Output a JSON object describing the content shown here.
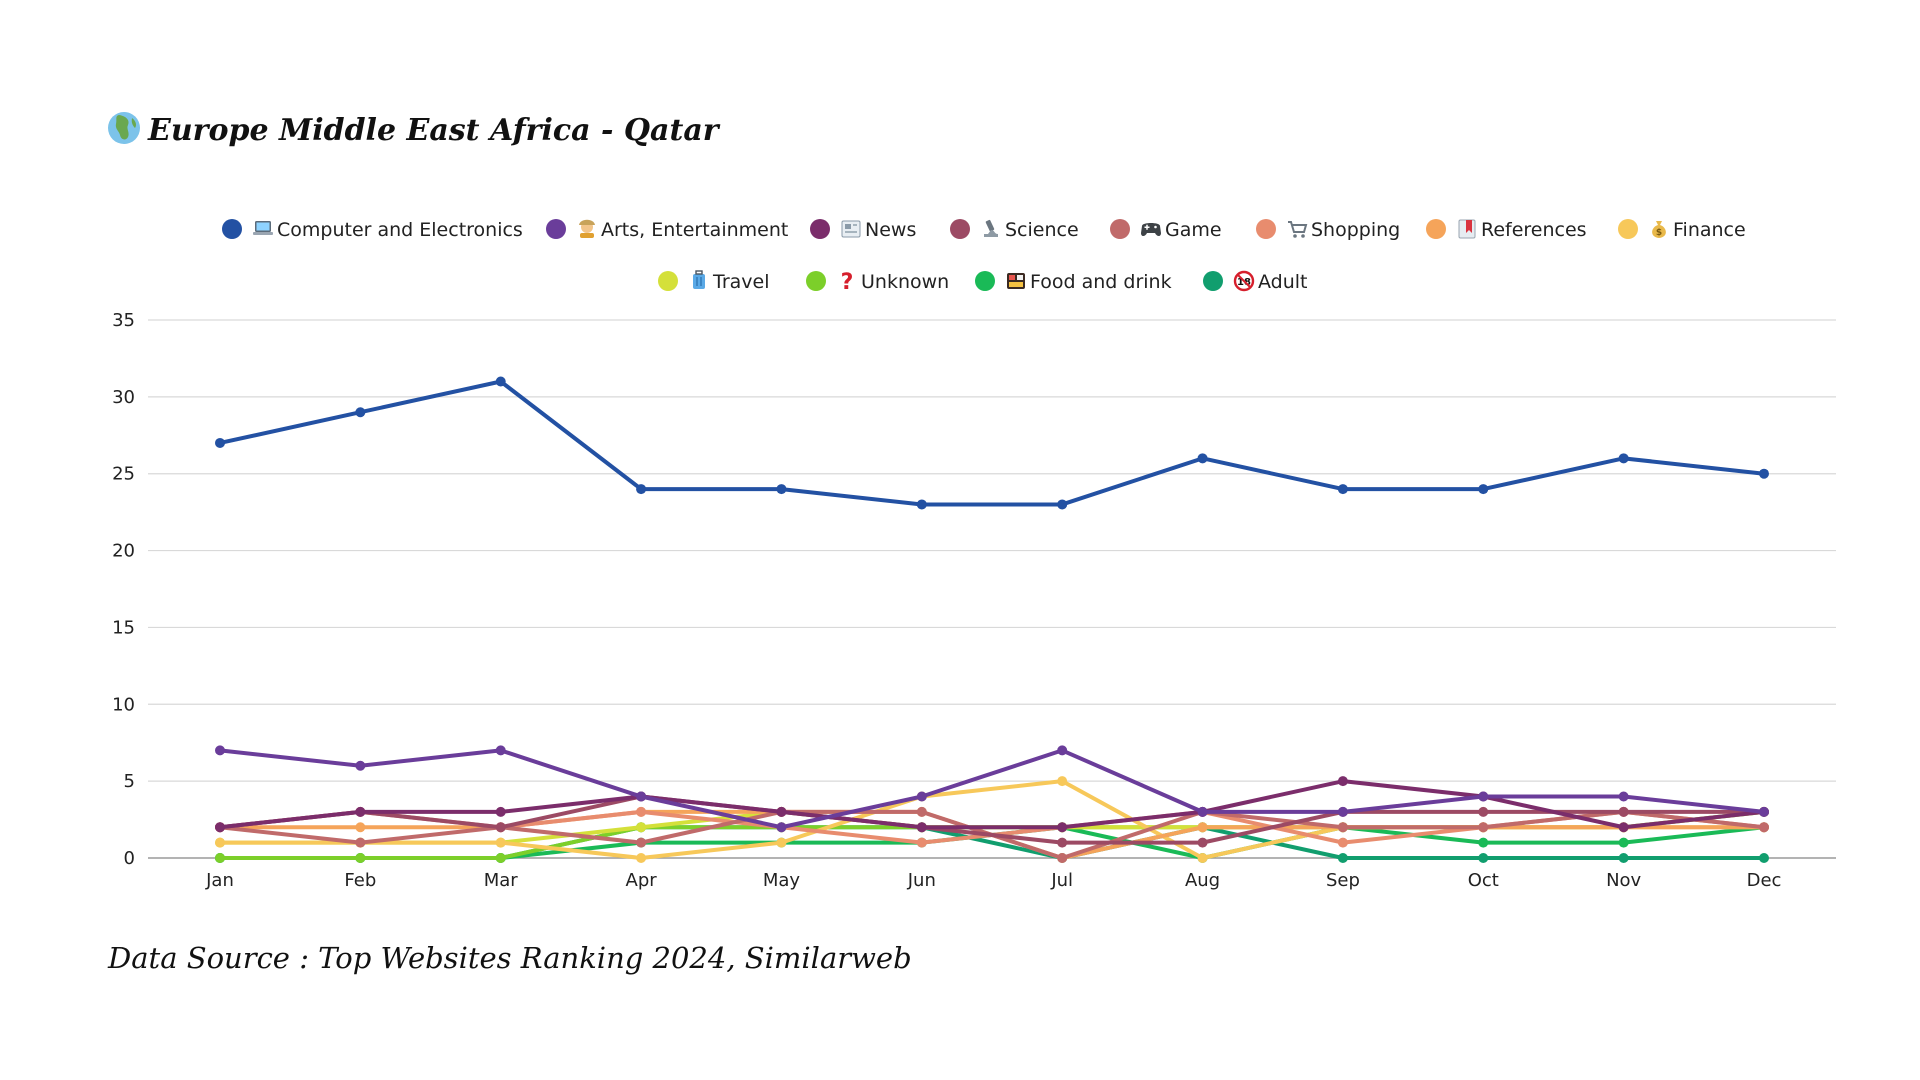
{
  "chart_data": {
    "type": "line",
    "title": "Europe Middle East Africa - Qatar",
    "title_icon": "globe-africa-icon",
    "source": "Data Source : Top Websites Ranking 2024, Similarweb",
    "xlabel": "",
    "ylabel": "",
    "categories": [
      "Jan",
      "Feb",
      "Mar",
      "Apr",
      "May",
      "Jun",
      "Jul",
      "Aug",
      "Sep",
      "Oct",
      "Nov",
      "Dec"
    ],
    "ylim": [
      0,
      35
    ],
    "yticks": [
      0,
      5,
      10,
      15,
      20,
      25,
      30,
      35
    ],
    "grid": true,
    "legend_position": "top",
    "series": [
      {
        "name": "Computer and Electronics",
        "icon": "laptop-icon",
        "color": "#2351a3",
        "values": [
          27,
          29,
          31,
          24,
          24,
          23,
          23,
          26,
          24,
          24,
          26,
          25
        ]
      },
      {
        "name": "Arts, Entertainment",
        "icon": "artist-icon",
        "color": "#6a3d9a",
        "values": [
          7,
          6,
          7,
          4,
          2,
          4,
          7,
          3,
          3,
          4,
          4,
          3
        ]
      },
      {
        "name": "News",
        "icon": "newspaper-icon",
        "color": "#7b2d6b",
        "values": [
          2,
          3,
          3,
          4,
          3,
          2,
          2,
          3,
          5,
          4,
          2,
          3
        ]
      },
      {
        "name": "Science",
        "icon": "microscope-icon",
        "color": "#9c4a64",
        "values": [
          2,
          3,
          2,
          4,
          3,
          2,
          1,
          1,
          3,
          3,
          3,
          3
        ]
      },
      {
        "name": "Game",
        "icon": "game-controller-icon",
        "color": "#c06a6a",
        "values": [
          2,
          1,
          2,
          1,
          3,
          3,
          0,
          3,
          2,
          2,
          3,
          2
        ]
      },
      {
        "name": "Shopping",
        "icon": "shopping-cart-icon",
        "color": "#e88c6e",
        "values": [
          2,
          3,
          2,
          3,
          2,
          1,
          2,
          3,
          1,
          2,
          3,
          2
        ]
      },
      {
        "name": "References",
        "icon": "bookmark-icon",
        "color": "#f5a45a",
        "values": [
          2,
          2,
          2,
          3,
          3,
          3,
          0,
          2,
          2,
          2,
          2,
          2
        ]
      },
      {
        "name": "Finance",
        "icon": "money-bag-icon",
        "color": "#f7c85a",
        "values": [
          1,
          1,
          1,
          0,
          1,
          4,
          5,
          0,
          2,
          2,
          2,
          2
        ]
      },
      {
        "name": "Travel",
        "icon": "luggage-icon",
        "color": "#d4e03a",
        "values": [
          1,
          1,
          1,
          2,
          3,
          2,
          2,
          2,
          2,
          2,
          2,
          3
        ]
      },
      {
        "name": "Unknown",
        "icon": "question-mark-icon",
        "color": "#7ccf2a",
        "values": [
          0,
          0,
          0,
          2,
          2,
          2,
          2,
          2,
          2,
          2,
          2,
          3
        ]
      },
      {
        "name": "Food and drink",
        "icon": "bento-box-icon",
        "color": "#1aba57",
        "values": [
          0,
          0,
          0,
          1,
          1,
          1,
          2,
          0,
          2,
          1,
          1,
          2
        ]
      },
      {
        "name": "Adult",
        "icon": "no-under-18-icon",
        "color": "#119e6e",
        "values": [
          0,
          0,
          0,
          2,
          2,
          2,
          0,
          2,
          0,
          0,
          0,
          0
        ]
      }
    ]
  }
}
